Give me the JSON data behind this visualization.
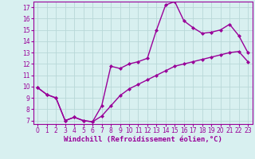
{
  "line1_x": [
    0,
    1,
    2,
    3,
    4,
    5,
    6,
    7,
    8,
    9,
    10,
    11,
    12,
    13,
    14,
    15,
    16,
    17,
    18,
    19,
    20,
    21,
    22,
    23
  ],
  "line1_y": [
    9.9,
    9.3,
    9.0,
    7.0,
    7.3,
    7.0,
    6.9,
    8.3,
    11.8,
    11.6,
    12.0,
    12.2,
    12.5,
    15.0,
    17.2,
    17.5,
    15.8,
    15.2,
    14.7,
    14.8,
    15.0,
    15.5,
    14.5,
    13.0
  ],
  "line2_x": [
    0,
    1,
    2,
    3,
    4,
    5,
    6,
    7,
    8,
    9,
    10,
    11,
    12,
    13,
    14,
    15,
    16,
    17,
    18,
    19,
    20,
    21,
    22,
    23
  ],
  "line2_y": [
    9.9,
    9.3,
    9.0,
    7.0,
    7.3,
    7.0,
    6.9,
    7.4,
    8.3,
    9.2,
    9.8,
    10.2,
    10.6,
    11.0,
    11.4,
    11.8,
    12.0,
    12.2,
    12.4,
    12.6,
    12.8,
    13.0,
    13.1,
    12.2
  ],
  "color": "#990099",
  "bg_color": "#d8f0f0",
  "grid_color": "#b8d8d8",
  "xlabel": "Windchill (Refroidissement éolien,°C)",
  "xlim": [
    -0.5,
    23.5
  ],
  "ylim": [
    6.7,
    17.5
  ],
  "xticks": [
    0,
    1,
    2,
    3,
    4,
    5,
    6,
    7,
    8,
    9,
    10,
    11,
    12,
    13,
    14,
    15,
    16,
    17,
    18,
    19,
    20,
    21,
    22,
    23
  ],
  "yticks": [
    7,
    8,
    9,
    10,
    11,
    12,
    13,
    14,
    15,
    16,
    17
  ],
  "marker": "D",
  "markersize": 2,
  "linewidth": 1.0,
  "xlabel_fontsize": 6.5,
  "tick_fontsize": 5.5
}
